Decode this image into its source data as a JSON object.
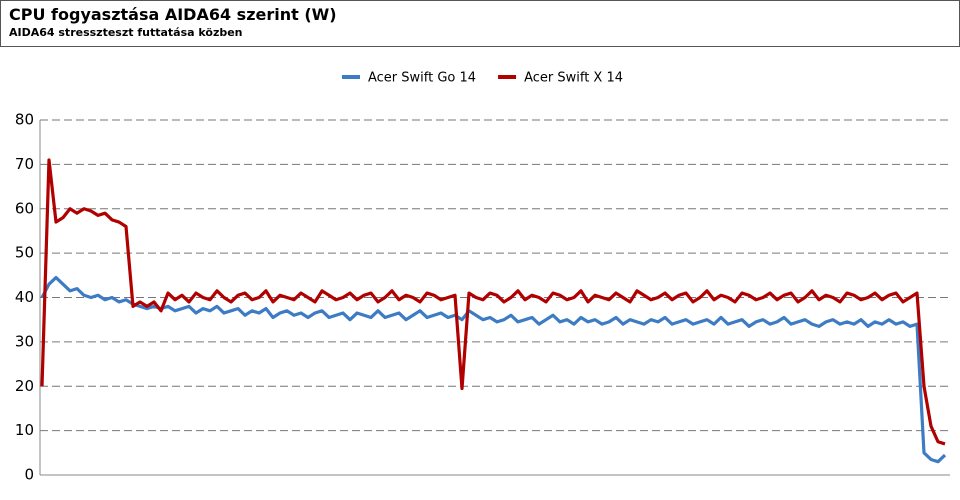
{
  "chart_data": {
    "type": "line",
    "title": "CPU fogyasztása AIDA64 szerint (W)",
    "subtitle": "AIDA64 stresszteszt futtatása közben",
    "ylim": [
      0,
      80
    ],
    "yticks": [
      0,
      10,
      20,
      30,
      40,
      50,
      60,
      70,
      80
    ],
    "grid": true,
    "legend": "top",
    "series": [
      {
        "name": "Acer Swift Go 14",
        "color": "#3d7cc4",
        "values": [
          40,
          43,
          44.5,
          43,
          41.5,
          42,
          40.5,
          40,
          40.5,
          39.5,
          40,
          39,
          39.5,
          38.5,
          38,
          37.5,
          38,
          37.5,
          38,
          37,
          37.5,
          38,
          36.5,
          37.5,
          37,
          38,
          36.5,
          37,
          37.5,
          36,
          37,
          36.5,
          37.5,
          35.5,
          36.5,
          37,
          36,
          36.5,
          35.5,
          36.5,
          37,
          35.5,
          36,
          36.5,
          35,
          36.5,
          36,
          35.5,
          37,
          35.5,
          36,
          36.5,
          35,
          36,
          37,
          35.5,
          36,
          36.5,
          35.5,
          36,
          35,
          37,
          36,
          35,
          35.5,
          34.5,
          35,
          36,
          34.5,
          35,
          35.5,
          34,
          35,
          36,
          34.5,
          35,
          34,
          35.5,
          34.5,
          35,
          34,
          34.5,
          35.5,
          34,
          35,
          34.5,
          34,
          35,
          34.5,
          35.5,
          34,
          34.5,
          35,
          34,
          34.5,
          35,
          34,
          35.5,
          34,
          34.5,
          35,
          33.5,
          34.5,
          35,
          34,
          34.5,
          35.5,
          34,
          34.5,
          35,
          34,
          33.5,
          34.5,
          35,
          34,
          34.5,
          34,
          35,
          33.5,
          34.5,
          34,
          35,
          34,
          34.5,
          33.5,
          34,
          5,
          3.5,
          3,
          4.5
        ]
      },
      {
        "name": "Acer Swift X 14",
        "color": "#b00000",
        "values": [
          20,
          71,
          57,
          58,
          60,
          59,
          60,
          59.5,
          58.5,
          59,
          57.5,
          57,
          56,
          38,
          39,
          38,
          39,
          37,
          41,
          39.5,
          40.5,
          39,
          41,
          40,
          39.5,
          41.5,
          40,
          39,
          40.5,
          41,
          39.5,
          40,
          41.5,
          39,
          40.5,
          40,
          39.5,
          41,
          40,
          39,
          41.5,
          40.5,
          39.5,
          40,
          41,
          39.5,
          40.5,
          41,
          39,
          40,
          41.5,
          39.5,
          40.5,
          40,
          39,
          41,
          40.5,
          39.5,
          40,
          40.5,
          19.5,
          41,
          40,
          39.5,
          41,
          40.5,
          39,
          40,
          41.5,
          39.5,
          40.5,
          40,
          39,
          41,
          40.5,
          39.5,
          40,
          41.5,
          39,
          40.5,
          40,
          39.5,
          41,
          40,
          39,
          41.5,
          40.5,
          39.5,
          40,
          41,
          39.5,
          40.5,
          41,
          39,
          40,
          41.5,
          39.5,
          40.5,
          40,
          39,
          41,
          40.5,
          39.5,
          40,
          41,
          39.5,
          40.5,
          41,
          39,
          40,
          41.5,
          39.5,
          40.5,
          40,
          39,
          41,
          40.5,
          39.5,
          40,
          41,
          39.5,
          40.5,
          41,
          39,
          40,
          41,
          20,
          11,
          7.5,
          7
        ]
      }
    ]
  }
}
